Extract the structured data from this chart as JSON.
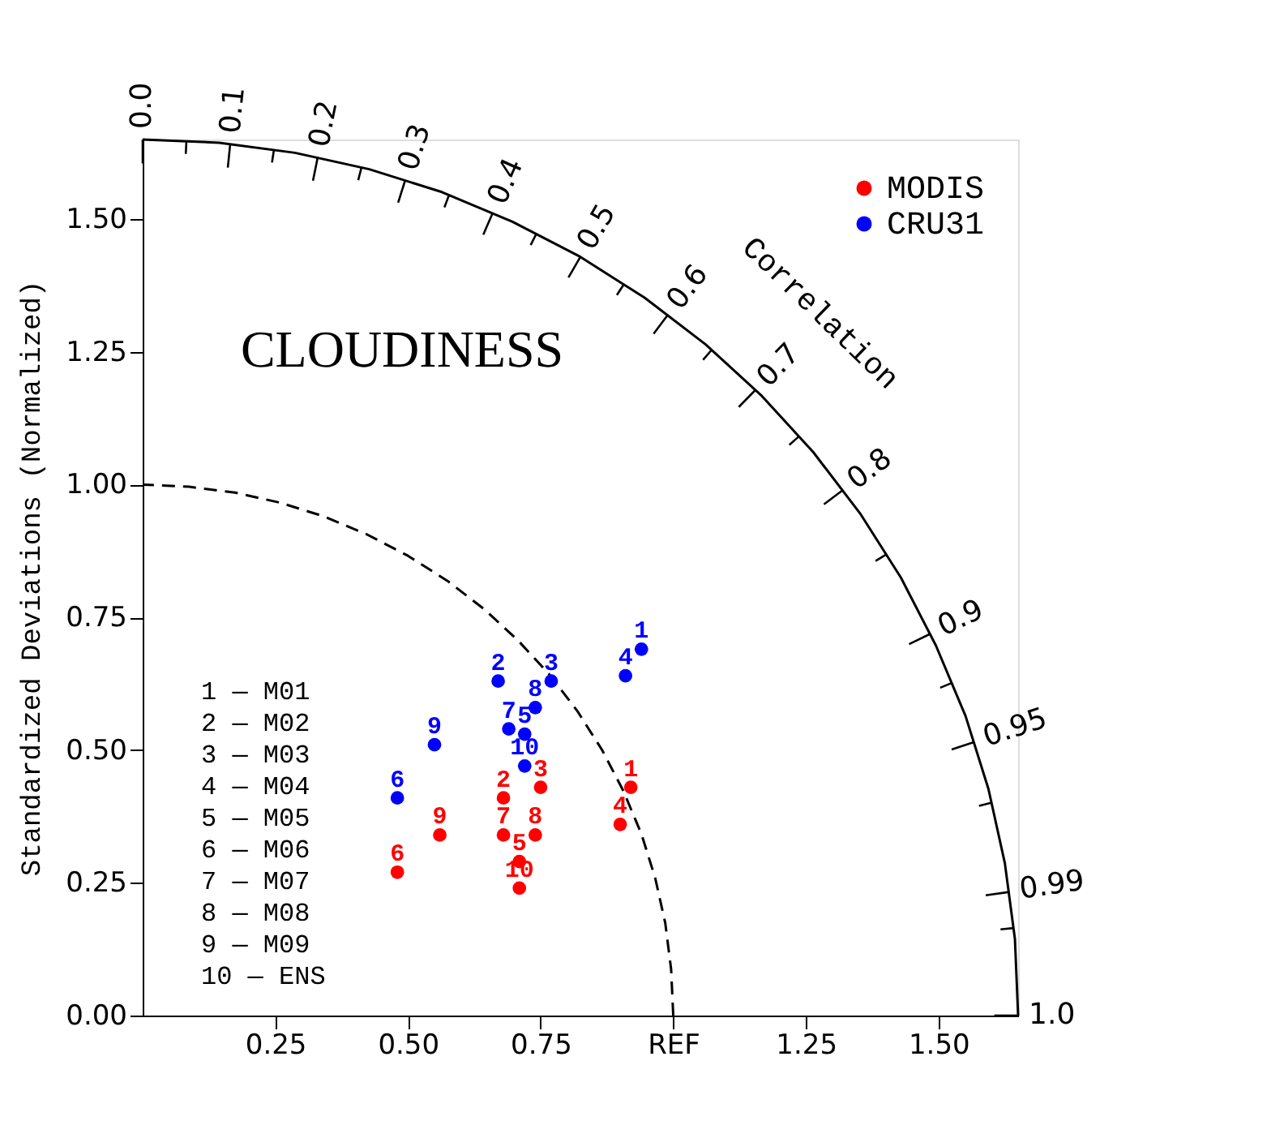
{
  "chart_data": {
    "type": "scatter",
    "ylabel": "Standardized Deviations (Normalized)",
    "annotations": [
      "CLOUDINESS",
      "1 — M01",
      "2 — M02",
      "3 — M03",
      "4 — M04",
      "5 — M05",
      "6 — M06",
      "7 — M07",
      "8 — M08",
      "9 — M09",
      "10 — ENS",
      {
        "text": "1",
        "x": 0.92,
        "y": 0.43
      },
      {
        "text": "2",
        "x": 0.68,
        "y": 0.41
      },
      {
        "text": "3",
        "x": 0.75,
        "y": 0.43
      },
      {
        "text": "4",
        "x": 0.9,
        "y": 0.36
      },
      {
        "text": "5",
        "x": 0.71,
        "y": 0.29
      },
      {
        "text": "6",
        "x": 0.48,
        "y": 0.27
      },
      {
        "text": "7",
        "x": 0.68,
        "y": 0.34
      },
      {
        "text": "8",
        "x": 0.74,
        "y": 0.34
      },
      {
        "text": "9",
        "x": 0.56,
        "y": 0.34
      },
      {
        "text": "10",
        "x": 0.71,
        "y": 0.24
      },
      {
        "text": "1",
        "x": 0.94,
        "y": 0.69
      },
      {
        "text": "2",
        "x": 0.67,
        "y": 0.63
      },
      {
        "text": "3",
        "x": 0.77,
        "y": 0.63
      },
      {
        "text": "4",
        "x": 0.91,
        "y": 0.64
      },
      {
        "text": "5",
        "x": 0.72,
        "y": 0.53
      },
      {
        "text": "6",
        "x": 0.48,
        "y": 0.41
      },
      {
        "text": "7",
        "x": 0.69,
        "y": 0.54
      },
      {
        "text": "8",
        "x": 0.74,
        "y": 0.58
      },
      {
        "text": "9",
        "x": 0.55,
        "y": 0.51
      },
      {
        "text": "10",
        "x": 0.72,
        "y": 0.47
      },
      "0.0",
      "0.1",
      "0.2",
      "0.3",
      "0.4",
      "0.5",
      "0.6",
      "0.7",
      "0.8",
      "0.9",
      "0.95",
      "0.99",
      "1.0",
      "Correlation"
    ],
    "series": [
      {
        "name": "MODIS",
        "color": "#ff0000",
        "x": [
          0.92,
          0.68,
          0.75,
          0.9,
          0.71,
          0.48,
          0.68,
          0.74,
          0.56,
          0.71
        ],
        "values": [
          0.43,
          0.41,
          0.43,
          0.36,
          0.29,
          0.27,
          0.34,
          0.34,
          0.34,
          0.24
        ]
      },
      {
        "name": "CRU31",
        "color": "#0000ff",
        "x": [
          0.94,
          0.67,
          0.77,
          0.91,
          0.72,
          0.48,
          0.69,
          0.74,
          0.55,
          0.72
        ],
        "values": [
          0.69,
          0.63,
          0.63,
          0.64,
          0.53,
          0.41,
          0.54,
          0.58,
          0.51,
          0.47
        ]
      },
      {
        "type": "line",
        "color": "#000000",
        "line_style": "solid",
        "marker": "none",
        "x": [
          1.65,
          1.644,
          1.625,
          1.594,
          1.551,
          1.495,
          1.429,
          1.352,
          1.264,
          1.167,
          1.061,
          0.946,
          0.825,
          0.697,
          0.564,
          0.427,
          0.287,
          0.144,
          0
        ],
        "values": [
          0,
          0.144,
          0.287,
          0.427,
          0.564,
          0.697,
          0.825,
          0.946,
          1.061,
          1.167,
          1.264,
          1.352,
          1.429,
          1.495,
          1.551,
          1.594,
          1.625,
          1.644,
          1.65
        ]
      },
      {
        "type": "line",
        "color": "#000000",
        "line_style": "dashed",
        "marker": "none",
        "x": [
          1,
          0.996,
          0.985,
          0.966,
          0.94,
          0.906,
          0.866,
          0.819,
          0.766,
          0.707,
          0.643,
          0.574,
          0.5,
          0.423,
          0.342,
          0.259,
          0.174,
          0.087,
          0
        ],
        "values": [
          0,
          0.087,
          0.174,
          0.259,
          0.342,
          0.423,
          0.5,
          0.574,
          0.643,
          0.707,
          0.766,
          0.819,
          0.866,
          0.906,
          0.94,
          0.966,
          0.985,
          0.996,
          1
        ]
      }
    ],
    "xlim": [
      0,
      1.65
    ],
    "ylim": [
      0,
      1.65
    ],
    "xticks": [
      0.25,
      {
        "value": 0.5,
        "label": "0.50"
      },
      0.75,
      {
        "value": 1.0,
        "label": "REF"
      },
      1.25,
      {
        "value": 1.5,
        "label": "1.50"
      }
    ],
    "yticks": [
      {
        "value": 0,
        "label": "0.00"
      },
      0.25,
      {
        "value": 0.5,
        "label": "0.50"
      },
      0.75,
      {
        "value": 1.0,
        "label": "1.00"
      },
      1.25,
      {
        "value": 1.5,
        "label": "1.50"
      }
    ],
    "marker": "circle",
    "grid": false,
    "legend": "top right"
  }
}
